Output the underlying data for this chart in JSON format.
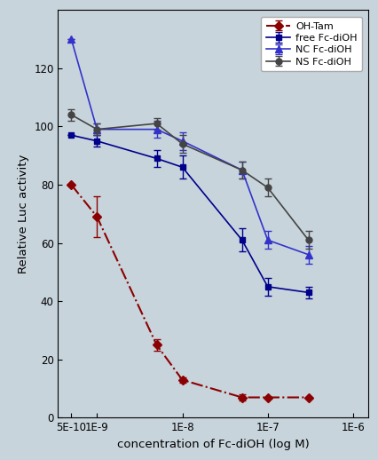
{
  "title": "",
  "xlabel": "concentration of Fc-diOH (log M)",
  "ylabel": "Relative Luc activity",
  "background_color": "#c8d4dc",
  "ylim": [
    0,
    140
  ],
  "yticks": [
    0,
    20,
    40,
    60,
    80,
    100,
    120
  ],
  "xticks": [
    5e-10,
    1e-09,
    1e-08,
    1e-07,
    1e-06
  ],
  "xticklabels": [
    "5E-10",
    "1E-9",
    "1E-8",
    "1E-7",
    "1E-6"
  ],
  "xlim": [
    3.5e-10,
    1.5e-06
  ],
  "OH_Tam": {
    "x": [
      5e-10,
      1e-09,
      5e-09,
      1e-08,
      5e-08,
      1e-07,
      3e-07
    ],
    "y": [
      80,
      69,
      25,
      13,
      7,
      7,
      7
    ],
    "yerr": [
      0,
      7,
      2,
      1,
      1,
      0,
      0
    ],
    "color": "#8b0000",
    "linestyle": "-.",
    "marker": "D",
    "markersize": 5,
    "linewidth": 1.5,
    "label": "OH-Tam"
  },
  "free_Fc": {
    "x": [
      5e-10,
      1e-09,
      5e-09,
      1e-08,
      5e-08,
      1e-07,
      3e-07
    ],
    "y": [
      97,
      95,
      89,
      86,
      61,
      45,
      43
    ],
    "yerr": [
      0,
      2,
      3,
      4,
      4,
      3,
      2
    ],
    "color": "#00008b",
    "linestyle": "-",
    "marker": "s",
    "markersize": 5,
    "linewidth": 1.2,
    "label": "free Fc-diOH"
  },
  "NC_Fc": {
    "x": [
      5e-10,
      1e-09,
      5e-09,
      1e-08,
      5e-08,
      1e-07,
      3e-07
    ],
    "y": [
      130,
      99,
      99,
      95,
      85,
      61,
      56
    ],
    "yerr": [
      0,
      2,
      3,
      3,
      3,
      3,
      3
    ],
    "color": "#3333cc",
    "linestyle": "-",
    "marker": "^",
    "markersize": 6,
    "linewidth": 1.2,
    "label": "NC Fc-diOH"
  },
  "NS_Fc": {
    "x": [
      5e-10,
      1e-09,
      5e-09,
      1e-08,
      5e-08,
      1e-07,
      3e-07
    ],
    "y": [
      104,
      99,
      101,
      94,
      85,
      79,
      61
    ],
    "yerr": [
      2,
      2,
      2,
      3,
      3,
      3,
      3
    ],
    "color": "#444444",
    "linestyle": "-",
    "marker": "o",
    "markersize": 5,
    "linewidth": 1.2,
    "label": "NS Fc-diOH"
  }
}
